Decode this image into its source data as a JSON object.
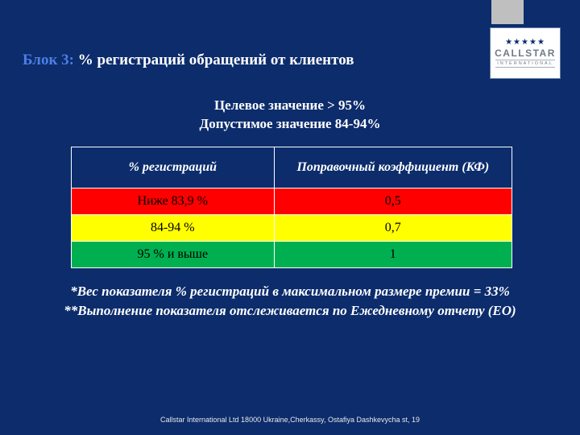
{
  "logo": {
    "stars": "★★★★★",
    "brand": "CALLSTAR",
    "sub": "INTERNATIONAL"
  },
  "title": {
    "prefix": "Блок 3:",
    "rest": " % регистраций обращений от клиентов"
  },
  "targets": {
    "line1": "Целевое значение > 95%",
    "line2": "Допустимое значение 84-94%"
  },
  "table": {
    "columns": [
      "% регистраций",
      "Поправочный коэффициент (КФ)"
    ],
    "col_widths": [
      "46%",
      "54%"
    ],
    "header_bg": "#0c2c6c",
    "rows": [
      {
        "cells": [
          "Ниже 83,9 %",
          "0,5"
        ],
        "bg": "#ff0000"
      },
      {
        "cells": [
          "84-94 %",
          "0,7"
        ],
        "bg": "#ffff00"
      },
      {
        "cells": [
          "95 % и выше",
          "1"
        ],
        "bg": "#00b050"
      }
    ]
  },
  "footnotes": {
    "line1": "*Вес показателя % регистраций в максимальном размере премии = 33%",
    "line2": "**Выполнение показателя отслеживается по Ежедневному отчету (ЕО)"
  },
  "footer": "Callstar International Ltd  18000 Ukraine,Cherkassy, Ostafiya Dashkevycha st, 19"
}
